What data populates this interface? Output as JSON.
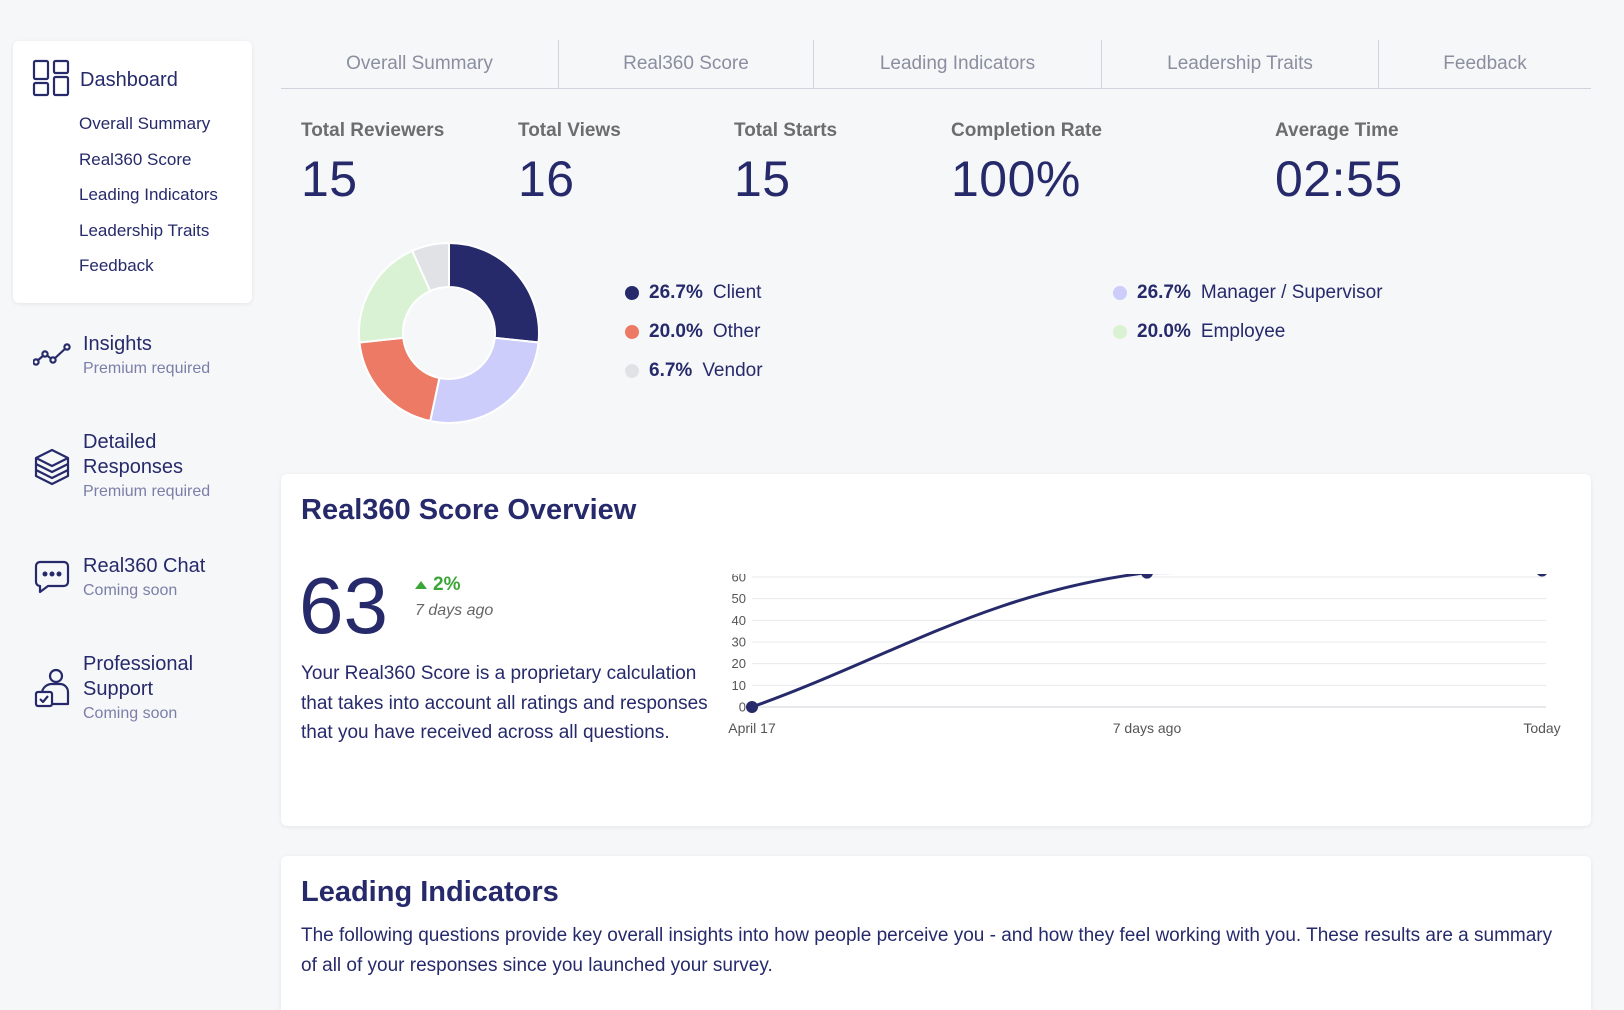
{
  "sidebar": {
    "dashboard_label": "Dashboard",
    "sub_items": [
      "Overall Summary",
      "Real360 Score",
      "Leading Indicators",
      "Leadership Traits",
      "Feedback"
    ],
    "nav": [
      {
        "title": "Insights",
        "subtitle": "Premium required",
        "icon": "insights-icon"
      },
      {
        "title": "Detailed Responses",
        "subtitle": "Premium required",
        "icon": "layers-icon"
      },
      {
        "title": "Real360 Chat",
        "subtitle": "Coming soon",
        "icon": "chat-icon"
      },
      {
        "title": "Professional Support",
        "subtitle": "Coming soon",
        "icon": "support-person-icon"
      }
    ]
  },
  "tabs": [
    "Overall Summary",
    "Real360 Score",
    "Leading Indicators",
    "Leadership Traits",
    "Feedback"
  ],
  "stats": {
    "total_reviewers": {
      "label": "Total Reviewers",
      "value": "15"
    },
    "total_views": {
      "label": "Total Views",
      "value": "16"
    },
    "total_starts": {
      "label": "Total Starts",
      "value": "15"
    },
    "completion_rate": {
      "label": "Completion Rate",
      "value": "100%"
    },
    "average_time": {
      "label": "Average Time",
      "value": "02:55"
    }
  },
  "breakdown": [
    {
      "pct": "26.7%",
      "label": "Client",
      "value": 26.7,
      "color": "#262a6b"
    },
    {
      "pct": "26.7%",
      "label": "Manager / Supervisor",
      "value": 26.7,
      "color": "#cccdfa"
    },
    {
      "pct": "20.0%",
      "label": "Other",
      "value": 20.0,
      "color": "#ec7a64"
    },
    {
      "pct": "20.0%",
      "label": "Employee",
      "value": 20.0,
      "color": "#daf2d4"
    },
    {
      "pct": "6.7%",
      "label": "Vendor",
      "value": 6.7,
      "color": "#e1e2e6"
    }
  ],
  "score_card": {
    "title": "Real360 Score Overview",
    "score": "63",
    "change": "2%",
    "change_period": "7 days ago",
    "description": "Your Real360 Score is a proprietary calculation that takes into account all ratings and responses that you have received across all questions."
  },
  "chart_data": {
    "type": "line",
    "categories": [
      "April 17",
      "7 days ago",
      "Today"
    ],
    "values": [
      0,
      62,
      63
    ],
    "ylim": [
      0,
      60
    ],
    "yticks": [
      0,
      10,
      20,
      30,
      40,
      50,
      60
    ],
    "grid": true,
    "color": "#262a6b"
  },
  "leading_indicators": {
    "title": "Leading Indicators",
    "description": "The following questions provide key overall insights into how people perceive you - and how they feel working with you. These results are a summary of all of your responses since you launched your survey."
  }
}
